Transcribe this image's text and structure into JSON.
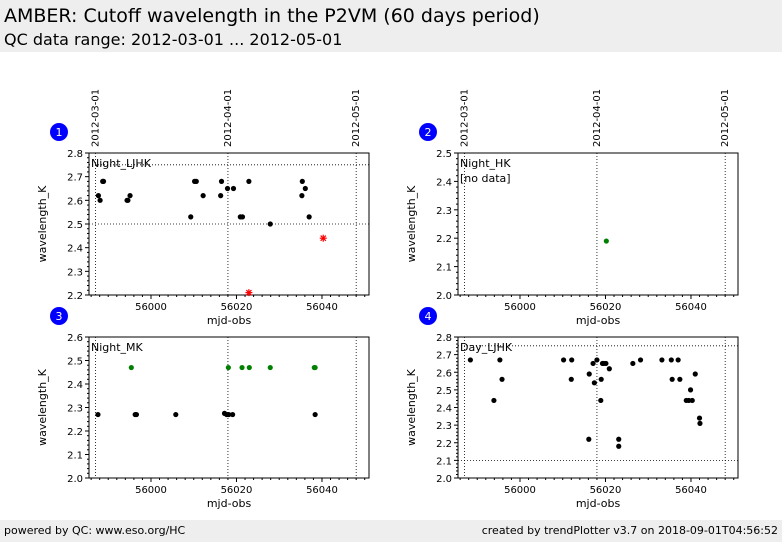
{
  "header": {
    "title": "AMBER: Cutoff wavelength in the P2VM (60 days period)",
    "subtitle": "QC data range: 2012-03-01 ... 2012-05-01"
  },
  "footer": {
    "left": "powered by QC: www.eso.org/HC",
    "right": "created by trendPlotter v3.7 on 2018-09-01T04:56:52"
  },
  "date_markers": [
    {
      "label": "2012-03-01",
      "mjd": 55987
    },
    {
      "label": "2012-04-01",
      "mjd": 56018
    },
    {
      "label": "2012-05-01",
      "mjd": 56048
    }
  ],
  "colors": {
    "black": "#000000",
    "green": "#008000",
    "red": "#ff0000",
    "badge": "#0000ff"
  },
  "chart_data": [
    {
      "panel": "1",
      "type": "scatter",
      "title": "Night_LJHK",
      "xlabel": "mjd-obs",
      "ylabel": "wavelength_K",
      "xlim": [
        55985.5,
        56051
      ],
      "ylim": [
        2.2,
        2.8
      ],
      "xticks": [
        56000,
        56020,
        56040
      ],
      "yticks": [
        2.2,
        2.3,
        2.4,
        2.5,
        2.6,
        2.7,
        2.8
      ],
      "hlines": [
        2.5,
        2.75
      ],
      "series": [
        {
          "marker": "dot",
          "color": "#000000",
          "x": [
            55987.7,
            55988.1,
            55988.7,
            55988.9,
            55994.4,
            55994.6,
            55995.1,
            56009.3,
            56010.2,
            56010.6,
            56012.2,
            56016.3,
            56016.5,
            56017.9,
            56019.3,
            56020.9,
            56021.4,
            56022.9,
            56027.9,
            56035.3,
            56035.4,
            56036.1,
            56037.0
          ],
          "y": [
            2.62,
            2.6,
            2.68,
            2.68,
            2.6,
            2.6,
            2.62,
            2.53,
            2.68,
            2.68,
            2.62,
            2.62,
            2.68,
            2.65,
            2.65,
            2.53,
            2.53,
            2.68,
            2.5,
            2.62,
            2.68,
            2.65,
            2.53
          ]
        },
        {
          "marker": "star",
          "color": "#ff0000",
          "x": [
            56022.9,
            56040.3
          ],
          "y": [
            2.21,
            2.44
          ]
        }
      ]
    },
    {
      "panel": "2",
      "type": "scatter",
      "title": "Night_HK",
      "note": "[no data]",
      "xlabel": "mjd-obs",
      "ylabel": "wavelength_K",
      "xlim": [
        55985.5,
        56051
      ],
      "ylim": [
        2.0,
        2.5
      ],
      "xticks": [
        56000,
        56020,
        56040
      ],
      "yticks": [
        2.0,
        2.1,
        2.2,
        2.3,
        2.4,
        2.5
      ],
      "hlines": [],
      "series": [
        {
          "marker": "dot",
          "color": "#008000",
          "x": [
            56020.2
          ],
          "y": [
            2.19
          ]
        }
      ]
    },
    {
      "panel": "3",
      "type": "scatter",
      "title": "Night_MK",
      "xlabel": "mjd-obs",
      "ylabel": "wavelength_K",
      "xlim": [
        55985.5,
        56051
      ],
      "ylim": [
        2.0,
        2.6
      ],
      "xticks": [
        56000,
        56020,
        56040
      ],
      "yticks": [
        2.0,
        2.1,
        2.2,
        2.3,
        2.4,
        2.5,
        2.6
      ],
      "hlines": [],
      "series": [
        {
          "marker": "dot",
          "color": "#000000",
          "x": [
            55987.6,
            55996.3,
            55996.6,
            56005.8,
            56017.2,
            56017.7,
            56018.2,
            56019.1,
            56038.4
          ],
          "y": [
            2.27,
            2.27,
            2.27,
            2.27,
            2.275,
            2.27,
            2.27,
            2.27,
            2.27
          ]
        },
        {
          "marker": "dot",
          "color": "#008000",
          "x": [
            55995.4,
            56018.1,
            56021.3,
            56023.0,
            56027.9,
            56038.2,
            56038.4
          ],
          "y": [
            2.47,
            2.47,
            2.47,
            2.47,
            2.47,
            2.47,
            2.47
          ]
        }
      ]
    },
    {
      "panel": "4",
      "type": "scatter",
      "title": "Day_LJHK",
      "xlabel": "mjd-obs",
      "ylabel": "wavelength_K",
      "xlim": [
        55985.5,
        56051
      ],
      "ylim": [
        2.0,
        2.8
      ],
      "xticks": [
        56000,
        56020,
        56040
      ],
      "yticks": [
        2.0,
        2.1,
        2.2,
        2.3,
        2.4,
        2.5,
        2.6,
        2.7,
        2.8
      ],
      "hlines": [
        2.1,
        2.75
      ],
      "series": [
        {
          "marker": "dot",
          "color": "#000000",
          "x": [
            55988.4,
            55993.9,
            55995.3,
            55995.8,
            56010.2,
            56012.0,
            56012.1,
            56016.1,
            56016.2,
            56017.1,
            56017.4,
            56018.0,
            56018.9,
            56019.0,
            56019.3,
            56019.6,
            56020.1,
            56020.9,
            56023.1,
            56023.1,
            56026.4,
            56028.2,
            56033.2,
            56035.4,
            56035.6,
            56037.0,
            56037.4,
            56038.9,
            56039.5,
            56039.9,
            56040.3,
            56041.0,
            56042.0,
            56042.1
          ],
          "y": [
            2.67,
            2.44,
            2.67,
            2.56,
            2.67,
            2.56,
            2.67,
            2.22,
            2.59,
            2.65,
            2.54,
            2.67,
            2.44,
            2.56,
            2.65,
            2.65,
            2.65,
            2.62,
            2.22,
            2.18,
            2.65,
            2.67,
            2.67,
            2.67,
            2.56,
            2.67,
            2.56,
            2.44,
            2.44,
            2.5,
            2.44,
            2.59,
            2.34,
            2.31
          ]
        }
      ]
    }
  ]
}
